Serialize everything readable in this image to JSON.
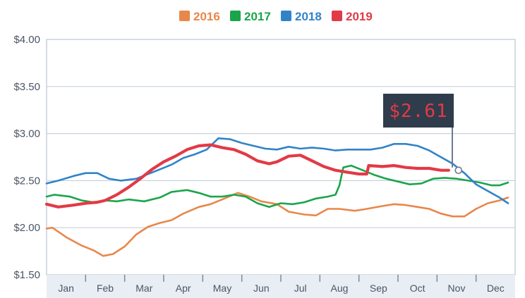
{
  "chart_data": {
    "type": "line",
    "title": "",
    "xlabel": "",
    "ylabel": "",
    "x": [
      "Jan",
      "Feb",
      "Mar",
      "Apr",
      "May",
      "Jun",
      "Jul",
      "Aug",
      "Sep",
      "Oct",
      "Nov",
      "Dec"
    ],
    "y_ticks": [
      "$4.00",
      "$3.50",
      "$3.00",
      "$2.50",
      "$2.00",
      "$1.50"
    ],
    "ylim": [
      1.5,
      4.0
    ],
    "grid": true,
    "legend_position": "top-center",
    "annotation": {
      "label": "$2.61",
      "series": "2019",
      "month": 10.55,
      "value": 2.61
    },
    "series": [
      {
        "name": "2016",
        "color": "#e8874a",
        "points": [
          [
            0.0,
            1.99
          ],
          [
            0.15,
            2.0
          ],
          [
            0.5,
            1.9
          ],
          [
            0.9,
            1.81
          ],
          [
            1.2,
            1.76
          ],
          [
            1.45,
            1.7
          ],
          [
            1.7,
            1.72
          ],
          [
            2.0,
            1.8
          ],
          [
            2.3,
            1.93
          ],
          [
            2.6,
            2.01
          ],
          [
            2.9,
            2.05
          ],
          [
            3.2,
            2.08
          ],
          [
            3.5,
            2.15
          ],
          [
            3.9,
            2.22
          ],
          [
            4.2,
            2.25
          ],
          [
            4.5,
            2.3
          ],
          [
            4.9,
            2.37
          ],
          [
            5.2,
            2.33
          ],
          [
            5.5,
            2.28
          ],
          [
            5.9,
            2.25
          ],
          [
            6.2,
            2.17
          ],
          [
            6.6,
            2.14
          ],
          [
            6.9,
            2.13
          ],
          [
            7.2,
            2.2
          ],
          [
            7.5,
            2.2
          ],
          [
            7.9,
            2.18
          ],
          [
            8.2,
            2.2
          ],
          [
            8.6,
            2.23
          ],
          [
            8.9,
            2.25
          ],
          [
            9.2,
            2.24
          ],
          [
            9.5,
            2.22
          ],
          [
            9.8,
            2.2
          ],
          [
            10.1,
            2.15
          ],
          [
            10.4,
            2.12
          ],
          [
            10.7,
            2.12
          ],
          [
            11.0,
            2.2
          ],
          [
            11.3,
            2.26
          ],
          [
            11.6,
            2.29
          ],
          [
            11.82,
            2.32
          ]
        ]
      },
      {
        "name": "2017",
        "color": "#1aa54a",
        "points": [
          [
            0.0,
            2.33
          ],
          [
            0.2,
            2.35
          ],
          [
            0.6,
            2.33
          ],
          [
            0.9,
            2.29
          ],
          [
            1.2,
            2.27
          ],
          [
            1.5,
            2.29
          ],
          [
            1.8,
            2.28
          ],
          [
            2.1,
            2.3
          ],
          [
            2.5,
            2.28
          ],
          [
            2.9,
            2.32
          ],
          [
            3.2,
            2.38
          ],
          [
            3.6,
            2.4
          ],
          [
            3.9,
            2.37
          ],
          [
            4.2,
            2.33
          ],
          [
            4.5,
            2.33
          ],
          [
            4.8,
            2.35
          ],
          [
            5.1,
            2.33
          ],
          [
            5.4,
            2.26
          ],
          [
            5.7,
            2.22
          ],
          [
            6.0,
            2.26
          ],
          [
            6.3,
            2.25
          ],
          [
            6.6,
            2.27
          ],
          [
            6.9,
            2.31
          ],
          [
            7.2,
            2.33
          ],
          [
            7.4,
            2.35
          ],
          [
            7.5,
            2.45
          ],
          [
            7.6,
            2.64
          ],
          [
            7.8,
            2.66
          ],
          [
            8.1,
            2.61
          ],
          [
            8.4,
            2.56
          ],
          [
            8.7,
            2.52
          ],
          [
            9.0,
            2.49
          ],
          [
            9.3,
            2.46
          ],
          [
            9.6,
            2.47
          ],
          [
            9.9,
            2.52
          ],
          [
            10.2,
            2.53
          ],
          [
            10.5,
            2.52
          ],
          [
            10.8,
            2.5
          ],
          [
            11.1,
            2.48
          ],
          [
            11.4,
            2.45
          ],
          [
            11.6,
            2.45
          ],
          [
            11.82,
            2.48
          ]
        ]
      },
      {
        "name": "2018",
        "color": "#3183c8",
        "points": [
          [
            0.0,
            2.47
          ],
          [
            0.3,
            2.5
          ],
          [
            0.7,
            2.55
          ],
          [
            1.0,
            2.58
          ],
          [
            1.3,
            2.58
          ],
          [
            1.6,
            2.52
          ],
          [
            1.9,
            2.5
          ],
          [
            2.3,
            2.52
          ],
          [
            2.6,
            2.57
          ],
          [
            2.9,
            2.62
          ],
          [
            3.2,
            2.67
          ],
          [
            3.5,
            2.74
          ],
          [
            3.8,
            2.78
          ],
          [
            4.1,
            2.83
          ],
          [
            4.4,
            2.95
          ],
          [
            4.7,
            2.94
          ],
          [
            5.0,
            2.9
          ],
          [
            5.3,
            2.87
          ],
          [
            5.6,
            2.84
          ],
          [
            5.9,
            2.83
          ],
          [
            6.2,
            2.86
          ],
          [
            6.5,
            2.84
          ],
          [
            6.8,
            2.85
          ],
          [
            7.1,
            2.84
          ],
          [
            7.4,
            2.82
          ],
          [
            7.7,
            2.83
          ],
          [
            8.0,
            2.83
          ],
          [
            8.3,
            2.83
          ],
          [
            8.6,
            2.85
          ],
          [
            8.9,
            2.89
          ],
          [
            9.2,
            2.89
          ],
          [
            9.5,
            2.87
          ],
          [
            9.8,
            2.82
          ],
          [
            10.1,
            2.75
          ],
          [
            10.4,
            2.68
          ],
          [
            10.7,
            2.58
          ],
          [
            11.0,
            2.46
          ],
          [
            11.3,
            2.39
          ],
          [
            11.6,
            2.32
          ],
          [
            11.82,
            2.26
          ]
        ]
      },
      {
        "name": "2019",
        "color": "#e23a46",
        "points": [
          [
            0.0,
            2.25
          ],
          [
            0.3,
            2.22
          ],
          [
            0.7,
            2.24
          ],
          [
            1.0,
            2.26
          ],
          [
            1.3,
            2.27
          ],
          [
            1.5,
            2.29
          ],
          [
            1.8,
            2.35
          ],
          [
            2.1,
            2.43
          ],
          [
            2.4,
            2.52
          ],
          [
            2.7,
            2.62
          ],
          [
            3.0,
            2.7
          ],
          [
            3.3,
            2.76
          ],
          [
            3.6,
            2.83
          ],
          [
            3.9,
            2.87
          ],
          [
            4.2,
            2.88
          ],
          [
            4.5,
            2.85
          ],
          [
            4.8,
            2.83
          ],
          [
            5.1,
            2.78
          ],
          [
            5.4,
            2.71
          ],
          [
            5.7,
            2.68
          ],
          [
            5.9,
            2.7
          ],
          [
            6.2,
            2.76
          ],
          [
            6.5,
            2.77
          ],
          [
            6.8,
            2.71
          ],
          [
            7.1,
            2.65
          ],
          [
            7.4,
            2.61
          ],
          [
            7.7,
            2.59
          ],
          [
            8.0,
            2.57
          ],
          [
            8.2,
            2.57
          ],
          [
            8.25,
            2.66
          ],
          [
            8.6,
            2.65
          ],
          [
            8.9,
            2.66
          ],
          [
            9.2,
            2.64
          ],
          [
            9.5,
            2.63
          ],
          [
            9.8,
            2.63
          ],
          [
            10.1,
            2.61
          ],
          [
            10.3,
            2.61
          ]
        ]
      }
    ]
  }
}
